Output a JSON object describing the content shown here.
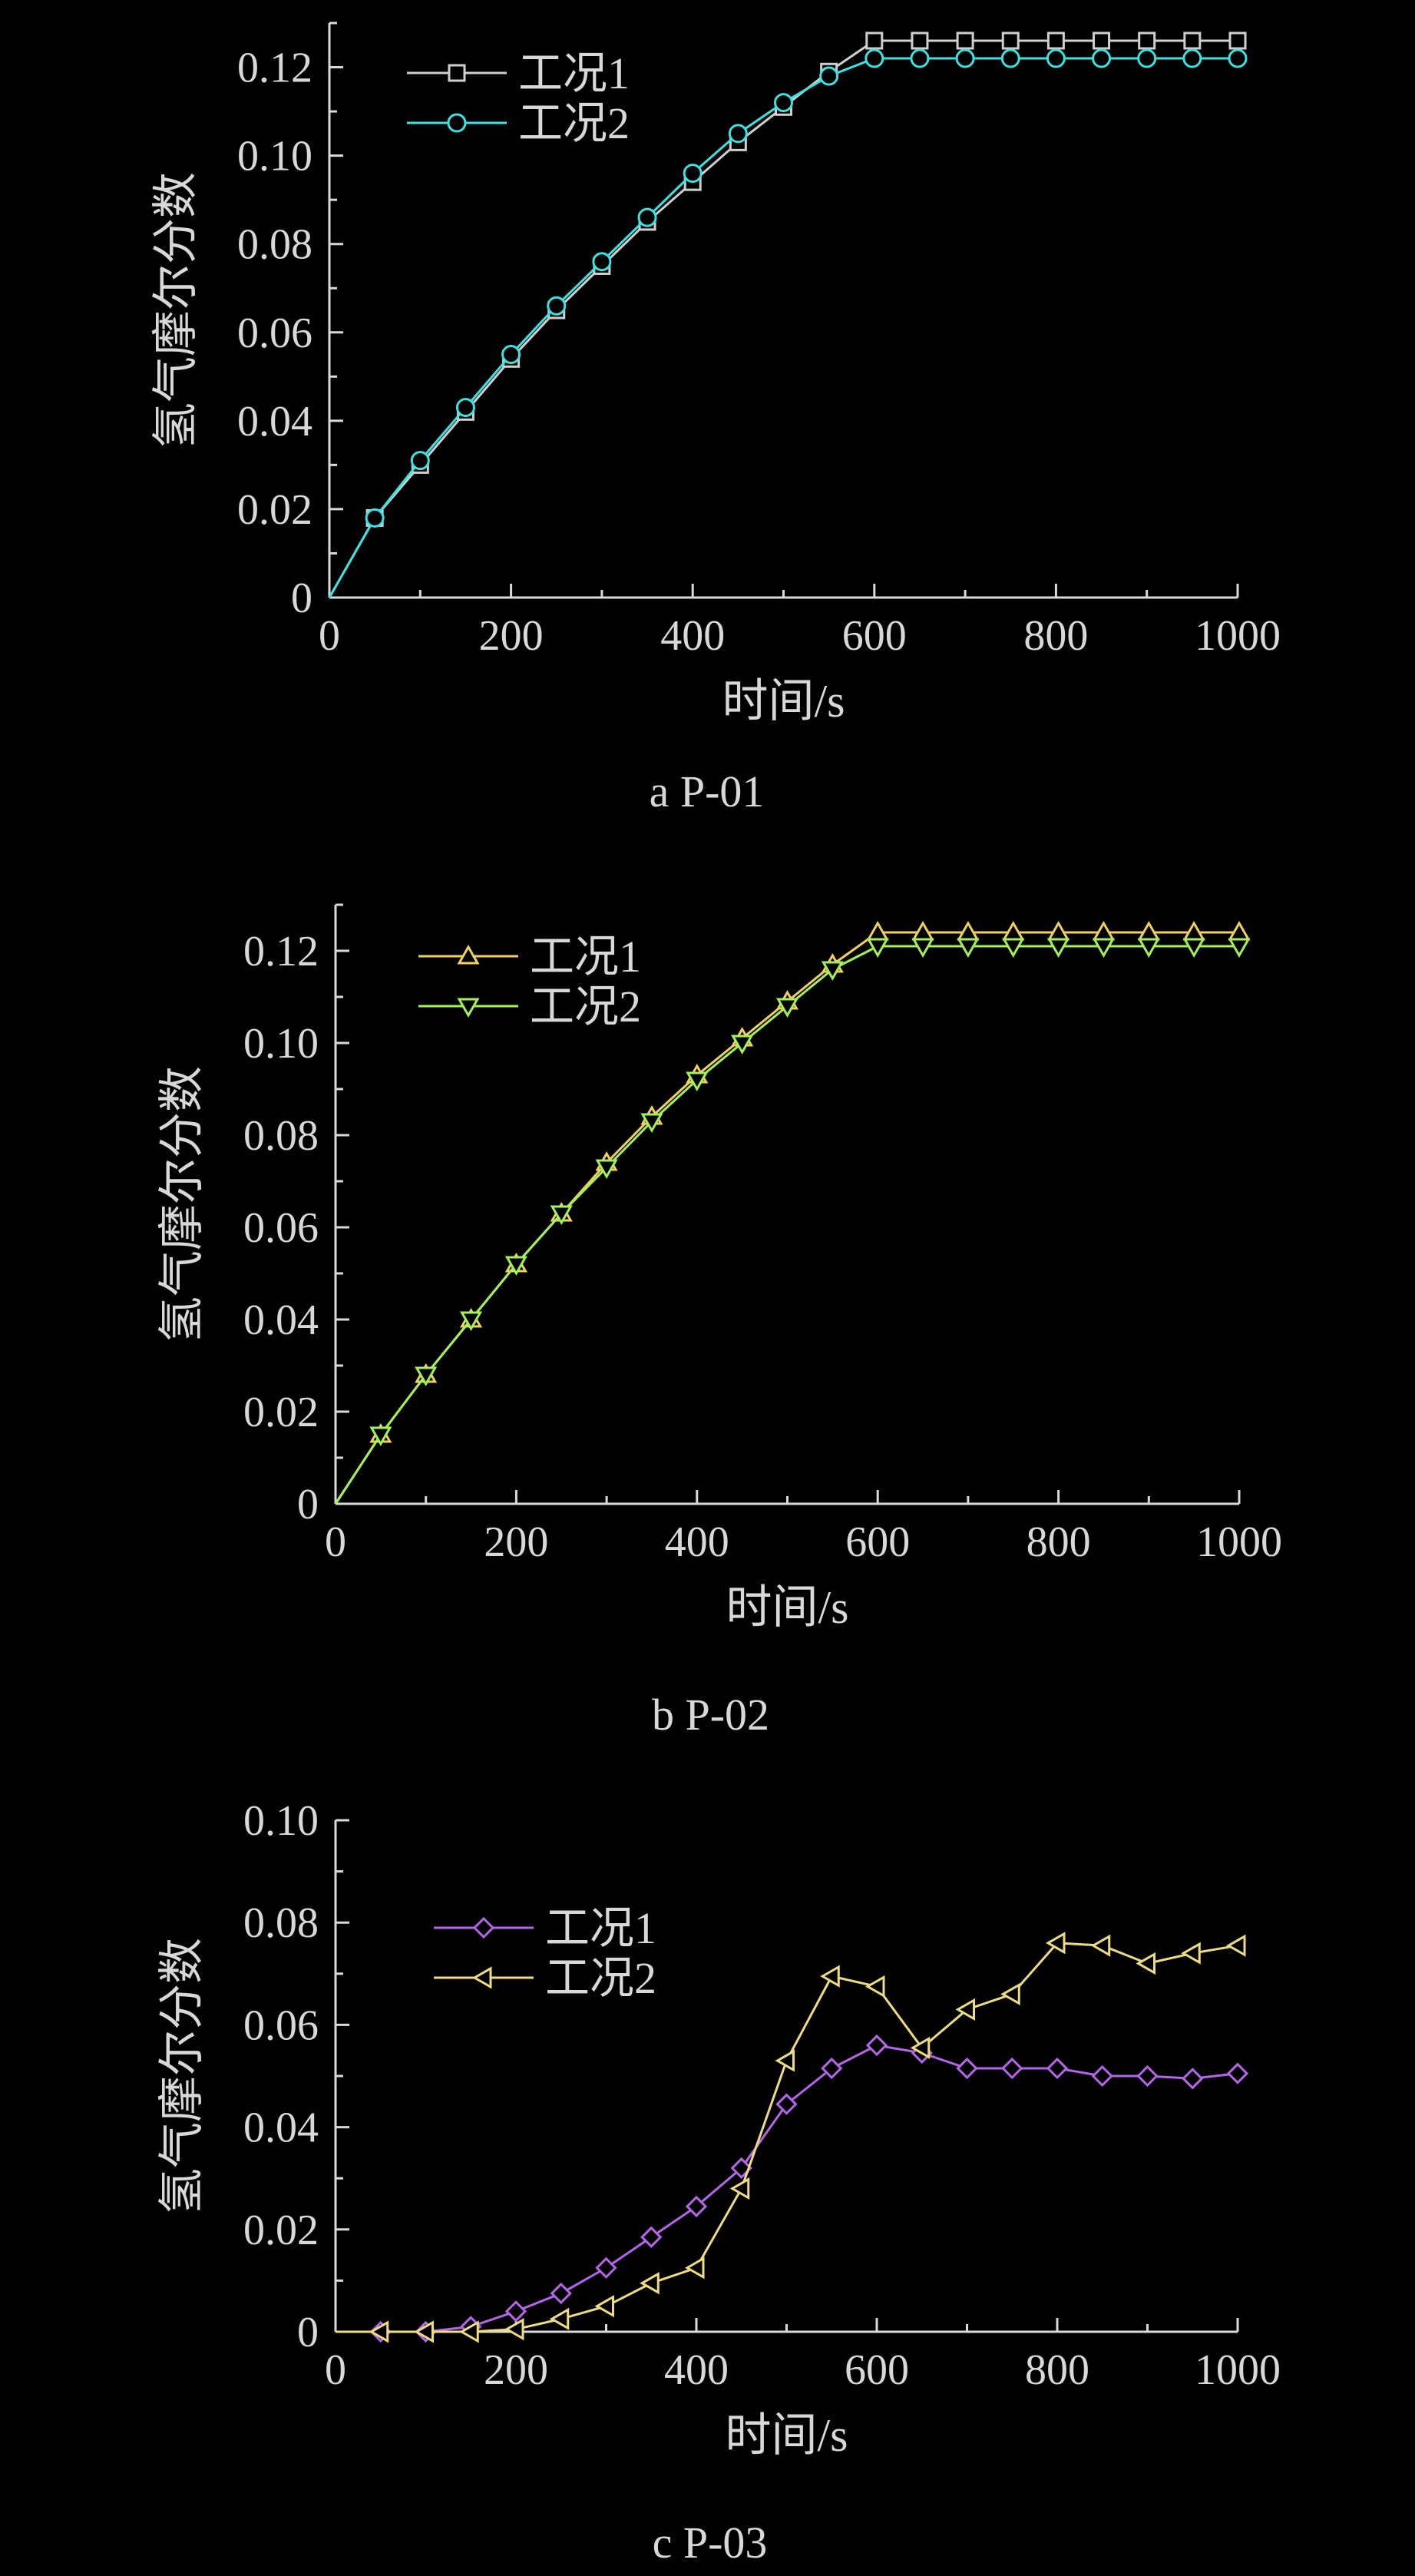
{
  "colors": {
    "background": "#000000",
    "axis": "#d9d9d9",
    "text": "#d8d8d8"
  },
  "chart_data": [
    {
      "type": "line",
      "caption": "a  P-01",
      "xlabel": "时间/s",
      "ylabel": "氢气摩尔分数",
      "xlim": [
        0,
        1000
      ],
      "ylim": [
        0,
        0.13
      ],
      "xticks": [
        0,
        200,
        400,
        600,
        800,
        1000
      ],
      "yticks": [
        0,
        0.02,
        0.04,
        0.06,
        0.08,
        0.1,
        0.12
      ],
      "ytick_labels": [
        "0",
        "0.02",
        "0.04",
        "0.06",
        "0.08",
        "0.10",
        "0.12"
      ],
      "legend_position": "top-left",
      "x": [
        0,
        50,
        100,
        150,
        200,
        250,
        300,
        350,
        400,
        450,
        500,
        550,
        600,
        650,
        700,
        750,
        800,
        850,
        900,
        950,
        1000
      ],
      "series": [
        {
          "name": "工况1",
          "marker": "square",
          "color": "#cfcfcf",
          "values": [
            0,
            0.018,
            0.03,
            0.042,
            0.054,
            0.065,
            0.075,
            0.085,
            0.094,
            0.103,
            0.111,
            0.119,
            0.126,
            0.126,
            0.126,
            0.126,
            0.126,
            0.126,
            0.126,
            0.126,
            0.126
          ]
        },
        {
          "name": "工况2",
          "marker": "circle",
          "color": "#3fe0e0",
          "values": [
            0,
            0.018,
            0.031,
            0.043,
            0.055,
            0.066,
            0.076,
            0.086,
            0.096,
            0.105,
            0.112,
            0.118,
            0.122,
            0.122,
            0.122,
            0.122,
            0.122,
            0.122,
            0.122,
            0.122,
            0.122
          ]
        }
      ]
    },
    {
      "type": "line",
      "caption": "b  P-02",
      "xlabel": "时间/s",
      "ylabel": "氢气摩尔分数",
      "xlim": [
        0,
        1000
      ],
      "ylim": [
        0,
        0.13
      ],
      "xticks": [
        0,
        200,
        400,
        600,
        800,
        1000
      ],
      "yticks": [
        0,
        0.02,
        0.04,
        0.06,
        0.08,
        0.1,
        0.12
      ],
      "ytick_labels": [
        "0",
        "0.02",
        "0.04",
        "0.06",
        "0.08",
        "0.10",
        "0.12"
      ],
      "legend_position": "top-left",
      "x": [
        0,
        50,
        100,
        150,
        200,
        250,
        300,
        350,
        400,
        450,
        500,
        550,
        600,
        650,
        700,
        750,
        800,
        850,
        900,
        950,
        1000
      ],
      "series": [
        {
          "name": "工况1",
          "marker": "triangle-up",
          "color": "#f0d060",
          "values": [
            0,
            0.015,
            0.028,
            0.04,
            0.052,
            0.063,
            0.074,
            0.084,
            0.093,
            0.101,
            0.109,
            0.117,
            0.124,
            0.124,
            0.124,
            0.124,
            0.124,
            0.124,
            0.124,
            0.124,
            0.124
          ]
        },
        {
          "name": "工况2",
          "marker": "triangle-down",
          "color": "#a4f05a",
          "values": [
            0,
            0.015,
            0.028,
            0.04,
            0.052,
            0.063,
            0.073,
            0.083,
            0.092,
            0.1,
            0.108,
            0.116,
            0.121,
            0.121,
            0.121,
            0.121,
            0.121,
            0.121,
            0.121,
            0.121,
            0.121
          ]
        }
      ]
    },
    {
      "type": "line",
      "caption": "c P-03",
      "xlabel": "时间/s",
      "ylabel": "氢气摩尔分数",
      "xlim": [
        0,
        1000
      ],
      "ylim": [
        0,
        0.1
      ],
      "xticks": [
        0,
        200,
        400,
        600,
        800,
        1000
      ],
      "yticks": [
        0,
        0.02,
        0.04,
        0.06,
        0.08,
        0.1
      ],
      "ytick_labels": [
        "0",
        "0.02",
        "0.04",
        "0.06",
        "0.08",
        "0.10"
      ],
      "legend_position": "top-left",
      "x": [
        0,
        50,
        100,
        150,
        200,
        250,
        300,
        350,
        400,
        450,
        500,
        550,
        600,
        650,
        700,
        750,
        800,
        850,
        900,
        950,
        1000
      ],
      "series": [
        {
          "name": "工况1",
          "marker": "diamond",
          "color": "#b466e8",
          "values": [
            0,
            0,
            0,
            0.001,
            0.004,
            0.0075,
            0.0125,
            0.0185,
            0.0245,
            0.032,
            0.0445,
            0.0515,
            0.056,
            0.0545,
            0.0515,
            0.0515,
            0.0515,
            0.05,
            0.05,
            0.0495,
            0.0505
          ]
        },
        {
          "name": "工况2",
          "marker": "triangle-left",
          "color": "#eedc82",
          "values": [
            0,
            0,
            0,
            0,
            0.0005,
            0.0025,
            0.005,
            0.0095,
            0.0125,
            0.028,
            0.053,
            0.0695,
            0.0675,
            0.0555,
            0.063,
            0.066,
            0.076,
            0.0755,
            0.072,
            0.074,
            0.0755
          ]
        }
      ]
    }
  ]
}
